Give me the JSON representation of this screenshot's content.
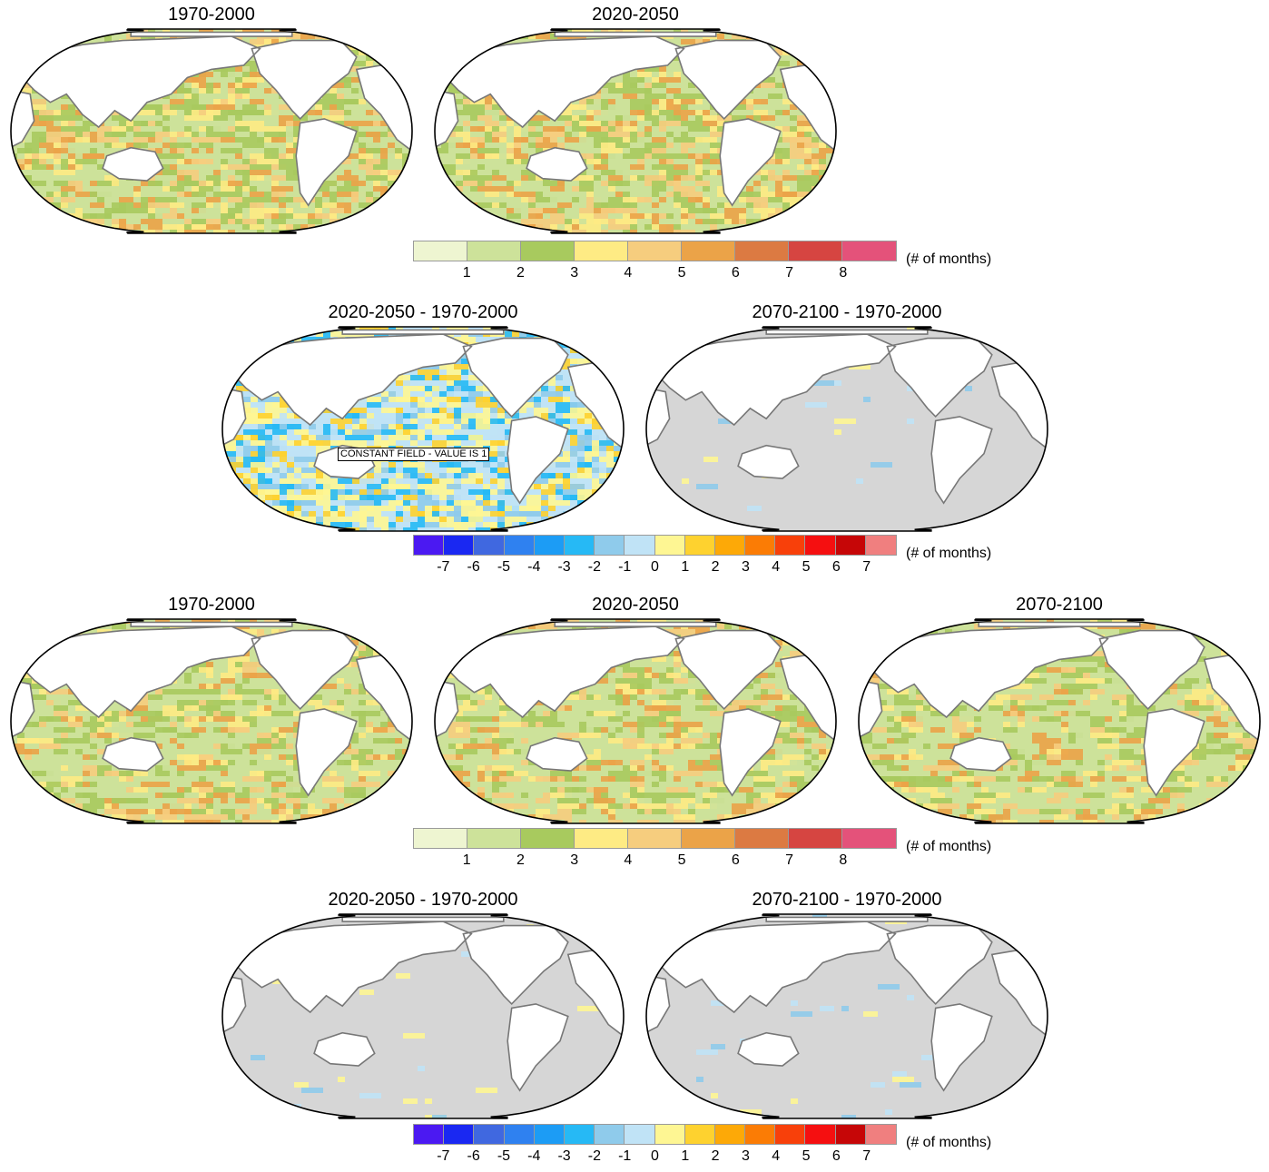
{
  "colors": {
    "land": "#ffffff",
    "coast": "#777777",
    "no_change": "#d6d6d6",
    "boundary": "#000000"
  },
  "colorbars": {
    "absolute": {
      "units": "(# of months)",
      "ticks": [
        "1",
        "2",
        "3",
        "4",
        "5",
        "6",
        "7",
        "8"
      ],
      "colors": [
        "#eef5d1",
        "#cde29a",
        "#a8ca5e",
        "#feeb84",
        "#f6cd7e",
        "#eba348",
        "#dc7a42",
        "#d64541",
        "#e4527a"
      ]
    },
    "difference": {
      "units": "(# of months)",
      "ticks": [
        "-7",
        "-6",
        "-5",
        "-4",
        "-3",
        "-2",
        "-1",
        "0",
        "1",
        "2",
        "3",
        "4",
        "5",
        "6",
        "7"
      ],
      "colors": [
        "#4b19f2",
        "#1a28f2",
        "#4068e0",
        "#2f81f0",
        "#1c9cf5",
        "#26b9f5",
        "#8fcbeb",
        "#c0e3f6",
        "#fef693",
        "#fed22f",
        "#fda907",
        "#fb7c05",
        "#f8400a",
        "#f50f10",
        "#c60607",
        "#f07f7f"
      ]
    }
  },
  "rows": [
    {
      "panels": [
        {
          "title": "1970-2000",
          "field": "absolute",
          "intensity": 1.0
        },
        {
          "title": "2020-2050",
          "field": "absolute",
          "intensity": 0.95
        }
      ],
      "colorbar": "absolute"
    },
    {
      "panels": [
        {
          "title": "2020-2050 - 1970-2000",
          "field": "difference",
          "intensity": 1.0,
          "annotation": "CONSTANT FIELD - VALUE IS 1"
        },
        {
          "title": "2070-2100 - 1970-2000",
          "field": "near_zero",
          "intensity": 0.3
        }
      ],
      "colorbar": "difference"
    },
    {
      "panels": [
        {
          "title": "1970-2000",
          "field": "absolute",
          "intensity": 0.8
        },
        {
          "title": "2020-2050",
          "field": "absolute",
          "intensity": 0.75
        },
        {
          "title": "2070-2100",
          "field": "absolute",
          "intensity": 0.65
        }
      ],
      "colorbar": "absolute"
    },
    {
      "panels": [
        {
          "title": "2020-2050 - 1970-2000",
          "field": "near_zero",
          "intensity": 0.15
        },
        {
          "title": "2070-2100 - 1970-2000",
          "field": "near_zero",
          "intensity": 0.2
        }
      ],
      "colorbar": "difference"
    }
  ]
}
